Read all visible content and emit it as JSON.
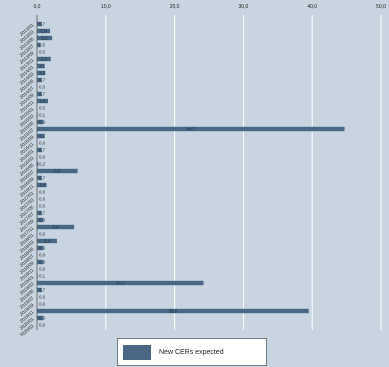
{
  "colors": {
    "background": "#c8d4df",
    "bar": "#4a6885",
    "grid": "#ffffff",
    "axis": "#555555"
  },
  "chart_data": {
    "type": "bar",
    "orientation": "horizontal",
    "xlim": [
      0,
      50
    ],
    "x_ticks": [
      0,
      10,
      20,
      30,
      40,
      50
    ],
    "x_tick_labels": [
      "0,0",
      "10,0",
      "20,0",
      "30,0",
      "40,0",
      "50,0"
    ],
    "x_axis_position": "top",
    "grid": true,
    "legend_position": "bottom",
    "categories": [
      "2013/01",
      "2013/03",
      "2013/05",
      "2013/07",
      "2013/09",
      "2013/11",
      "2014/01",
      "2014/03",
      "2014/05",
      "2014/07",
      "2014/09",
      "2014/11",
      "2015/01",
      "2015/03",
      "2015/05",
      "2015/07",
      "2015/09",
      "2015/11",
      "2016/01",
      "2016/03",
      "2016/05",
      "2016/07",
      "2016/09",
      "2016/11",
      "2017/01",
      "2017/03",
      "2017/05",
      "2017/07",
      "2017/09",
      "2017/11",
      "2018/01",
      "2018/03",
      "2018/05",
      "2018/07",
      "2018/09",
      "2018/11",
      "2019/01",
      "2019/03",
      "2019/05",
      "2019/07",
      "2019/09",
      "2019/11",
      "2020/01",
      "2020/03"
    ],
    "series": [
      {
        "name": "New CERs expected",
        "values": [
          0.7,
          1.9,
          2.2,
          0.5,
          0.0,
          2.0,
          1.1,
          1.2,
          0.7,
          0.0,
          0.7,
          1.6,
          0.0,
          0.1,
          0.9,
          44.7,
          1.1,
          0.0,
          0.7,
          0.0,
          0.2,
          5.9,
          0.7,
          1.4,
          0.0,
          0.0,
          0.0,
          0.7,
          0.9,
          5.4,
          0.0,
          2.9,
          0.9,
          0.0,
          0.9,
          0.0,
          0.1,
          24.2,
          0.7,
          0.0,
          0.0,
          39.5,
          0.9,
          0.0
        ]
      }
    ]
  },
  "legend": {
    "label": "New CERs expected"
  }
}
